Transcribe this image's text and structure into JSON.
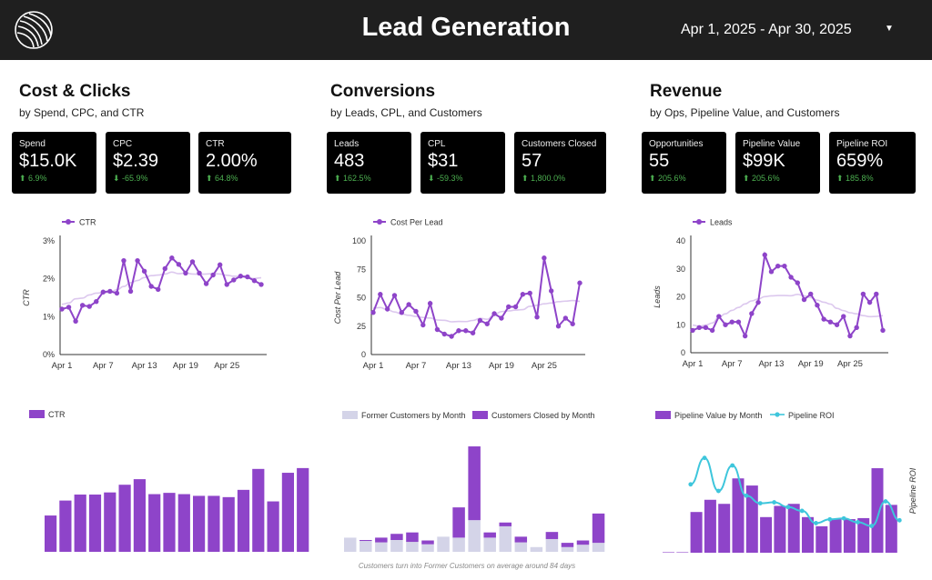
{
  "header": {
    "title": "Lead Generation",
    "date_range": "Apr 1, 2025 - Apr 30, 2025",
    "caret": "▼"
  },
  "sections": [
    {
      "title": "Cost & Clicks",
      "subtitle": "by Spend, CPC, and CTR",
      "kpis": [
        {
          "label": "Spend",
          "value": "$15.0K",
          "change": "⬆ 6.9%"
        },
        {
          "label": "CPC",
          "value": "$2.39",
          "change": "⬇ -65.9%"
        },
        {
          "label": "CTR",
          "value": "2.00%",
          "change": "⬆ 64.8%"
        }
      ]
    },
    {
      "title": "Conversions",
      "subtitle": "by Leads, CPL, and Customers",
      "kpis": [
        {
          "label": "Leads",
          "value": "483",
          "change": "⬆ 162.5%"
        },
        {
          "label": "CPL",
          "value": "$31",
          "change": "⬇ -59.3%"
        },
        {
          "label": "Customers Closed",
          "value": "57",
          "change": "⬆ 1,800.0%"
        }
      ]
    },
    {
      "title": "Revenue",
      "subtitle": "by Ops, Pipeline Value, and Customers",
      "kpis": [
        {
          "label": "Opportunities",
          "value": "55",
          "change": "⬆ 205.6%"
        },
        {
          "label": "Pipeline Value",
          "value": "$99K",
          "change": "⬆ 205.6%"
        },
        {
          "label": "Pipeline ROI",
          "value": "659%",
          "change": "⬆ 185.8%"
        }
      ]
    }
  ],
  "colors": {
    "purple": "#8e44c9",
    "lavender": "#d4d4e8",
    "cyan": "#3ec6dc",
    "trend": "#dcc8ee"
  },
  "chart_data": [
    {
      "type": "line",
      "legend": [
        "CTR"
      ],
      "ylabel": "CTR",
      "ylim": [
        0,
        3
      ],
      "yticks": [
        "0%",
        "1%",
        "2%",
        "3%"
      ],
      "xticks": [
        "Apr 1",
        "Apr 7",
        "Apr 13",
        "Apr 19",
        "Apr 25"
      ],
      "values": [
        1.2,
        1.25,
        0.88,
        1.3,
        1.27,
        1.4,
        1.65,
        1.67,
        1.62,
        2.48,
        1.67,
        2.48,
        2.2,
        1.8,
        1.72,
        2.27,
        2.55,
        2.38,
        2.15,
        2.45,
        2.15,
        1.87,
        2.1,
        2.37,
        1.85,
        1.97,
        2.07,
        2.05,
        1.95,
        1.85
      ]
    },
    {
      "type": "bar",
      "legend": [
        "CTR"
      ],
      "values": [
        0.85,
        1.2,
        1.34,
        1.34,
        1.39,
        1.57,
        1.7,
        1.35,
        1.38,
        1.35,
        1.31,
        1.31,
        1.28,
        1.45,
        1.94,
        1.18,
        1.85,
        1.96
      ]
    },
    {
      "type": "line",
      "legend": [
        "Cost Per Lead"
      ],
      "ylabel": "Cost Per Lead",
      "ylim": [
        0,
        100
      ],
      "yticks": [
        "0",
        "25",
        "50",
        "75",
        "100"
      ],
      "xticks": [
        "Apr 1",
        "Apr 7",
        "Apr 13",
        "Apr 19",
        "Apr 25"
      ],
      "values": [
        37,
        53,
        40,
        52,
        37,
        44,
        38,
        26,
        45,
        22,
        18,
        16,
        21,
        21,
        19,
        30,
        27,
        36,
        32,
        42,
        42,
        53,
        54,
        33,
        85,
        56,
        25,
        32,
        27,
        63
      ]
    },
    {
      "type": "bar",
      "legend": [
        "Former Customers by Month",
        "Customers Closed by Month"
      ],
      "series": [
        {
          "name": "Former Customers by Month",
          "values": [
            3,
            2.3,
            2,
            2.5,
            2.1,
            1.6,
            3.2,
            3,
            6.7,
            3,
            5.4,
            2,
            1,
            2.7,
            1,
            1.5,
            1.9
          ]
        },
        {
          "name": "Customers Closed by Month",
          "values": [
            0,
            0.2,
            1,
            1.3,
            2,
            0.8,
            0,
            6.4,
            15.6,
            1.1,
            0.8,
            1.2,
            0,
            1.5,
            0.9,
            0.9,
            6.2
          ]
        }
      ],
      "note": "Customers turn into Former Customers on average around 84 days"
    },
    {
      "type": "line",
      "legend": [
        "Leads"
      ],
      "ylabel": "Leads",
      "ylim": [
        0,
        40
      ],
      "yticks": [
        "0",
        "10",
        "20",
        "30",
        "40"
      ],
      "xticks": [
        "Apr 1",
        "Apr 7",
        "Apr 13",
        "Apr 19",
        "Apr 25"
      ],
      "values": [
        8,
        9,
        9,
        8,
        13,
        10,
        11,
        11,
        6,
        14,
        18,
        35,
        29,
        31,
        31,
        27,
        25,
        19,
        21,
        17,
        12,
        11,
        10,
        13,
        6,
        9,
        21,
        18,
        21,
        8
      ]
    },
    {
      "type": "bar",
      "legend": [
        "Pipeline Value by Month",
        "Pipeline ROI"
      ],
      "ylabel": "Pipeline ROI",
      "series": [
        {
          "name": "Pipeline Value by Month",
          "values": [
            0.5,
            0.5,
            40,
            52,
            48,
            73,
            66,
            35,
            46,
            48,
            35,
            26,
            33,
            33,
            34,
            83,
            47
          ]
        },
        {
          "name": "Pipeline ROI",
          "values": [
            26,
            55,
            83,
            48,
            75,
            43,
            35,
            36,
            31,
            27,
            14,
            18,
            19,
            15,
            11,
            37,
            17
          ]
        }
      ]
    }
  ]
}
